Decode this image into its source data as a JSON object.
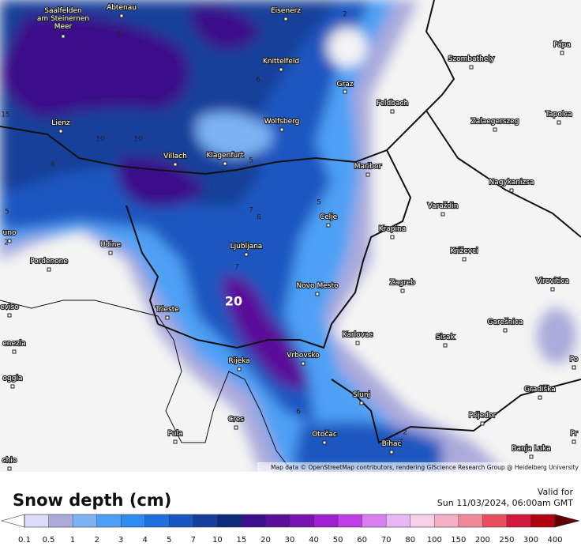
{
  "map": {
    "places": [
      {
        "lines": [
          "Saalfelden",
          "am Steinernen",
          "Meer"
        ]
      },
      {
        "lines": [
          "Abtenau"
        ]
      },
      {
        "lines": [
          "Eisenerz"
        ]
      },
      {
        "lines": [
          "Pápa"
        ]
      },
      {
        "lines": [
          "Szombathely"
        ]
      },
      {
        "lines": [
          "Knittelfeld"
        ]
      },
      {
        "lines": [
          "Graz"
        ]
      },
      {
        "lines": [
          "Feldbach"
        ]
      },
      {
        "lines": [
          "Lienz"
        ]
      },
      {
        "lines": [
          "Wolfsberg"
        ]
      },
      {
        "lines": [
          "Zalaegerszeg"
        ]
      },
      {
        "lines": [
          "Tapolca"
        ]
      },
      {
        "lines": [
          "Villach"
        ]
      },
      {
        "lines": [
          "Klagenfurt"
        ]
      },
      {
        "lines": [
          "Maribor"
        ]
      },
      {
        "lines": [
          "Nagykanizsa"
        ]
      },
      {
        "lines": [
          "Celje"
        ]
      },
      {
        "lines": [
          "Varaždin"
        ]
      },
      {
        "lines": [
          "uno"
        ]
      },
      {
        "lines": [
          "Udine"
        ]
      },
      {
        "lines": [
          "Krapina"
        ]
      },
      {
        "lines": [
          "Križevci"
        ]
      },
      {
        "lines": [
          "Pordenone"
        ]
      },
      {
        "lines": [
          "Ljubljana"
        ]
      },
      {
        "lines": [
          "Novo Mesto"
        ]
      },
      {
        "lines": [
          "Zagreb"
        ]
      },
      {
        "lines": [
          "Virovitica"
        ]
      },
      {
        "lines": [
          "eviso"
        ]
      },
      {
        "lines": [
          "Trieste"
        ]
      },
      {
        "lines": [
          "Karlovac"
        ]
      },
      {
        "lines": [
          "Sisak"
        ]
      },
      {
        "lines": [
          "Garešnica"
        ]
      },
      {
        "lines": [
          "enezia"
        ]
      },
      {
        "lines": [
          "Rijeka"
        ]
      },
      {
        "lines": [
          "Vrbovsko"
        ]
      },
      {
        "lines": [
          "oggia"
        ]
      },
      {
        "lines": [
          "Slunj"
        ]
      },
      {
        "lines": [
          "Gradiška"
        ]
      },
      {
        "lines": [
          "Cres"
        ]
      },
      {
        "lines": [
          "Prijedor"
        ]
      },
      {
        "lines": [
          "Pula"
        ]
      },
      {
        "lines": [
          "Otočac"
        ]
      },
      {
        "lines": [
          "Bihać"
        ]
      },
      {
        "lines": [
          "Pr"
        ]
      },
      {
        "lines": [
          "Po"
        ]
      },
      {
        "lines": [
          "Banja Luka"
        ]
      },
      {
        "lines": [
          "chio"
        ]
      }
    ],
    "contour_labels": [
      "2",
      "8",
      "6",
      "10",
      "10",
      "5",
      "6",
      "5",
      "7",
      "6",
      "5",
      "7",
      "20",
      "6",
      "2",
      "15",
      "2"
    ],
    "attribution": "Map data © OpenStreetMap contributors, rendering GIScience Research Group @ Heidelberg University"
  },
  "legend": {
    "title": "Snow depth (cm)",
    "valid_for": "Valid for",
    "valid_time": "Sun 11/03/2024, 06:00am GMT",
    "labels": [
      "0.1",
      "0.5",
      "1",
      "2",
      "3",
      "4",
      "5",
      "7",
      "10",
      "15",
      "20",
      "30",
      "40",
      "50",
      "60",
      "70",
      "80",
      "100",
      "150",
      "200",
      "250",
      "300",
      "400"
    ],
    "colors": [
      "#ffffff",
      "#dcdcf8",
      "#aaaadb",
      "#7db3f5",
      "#4da0f5",
      "#2e8cf0",
      "#1e6ee0",
      "#1a56c0",
      "#153f9a",
      "#0d2a78",
      "#3a0f8a",
      "#5a0f9a",
      "#7a14b0",
      "#a020d0",
      "#c040e8",
      "#d880f0",
      "#e8b8f5",
      "#f5d0e8",
      "#f5b0c8",
      "#f08a9a",
      "#e85060",
      "#d01840",
      "#b00010",
      "#8a0000",
      "#600000"
    ]
  }
}
